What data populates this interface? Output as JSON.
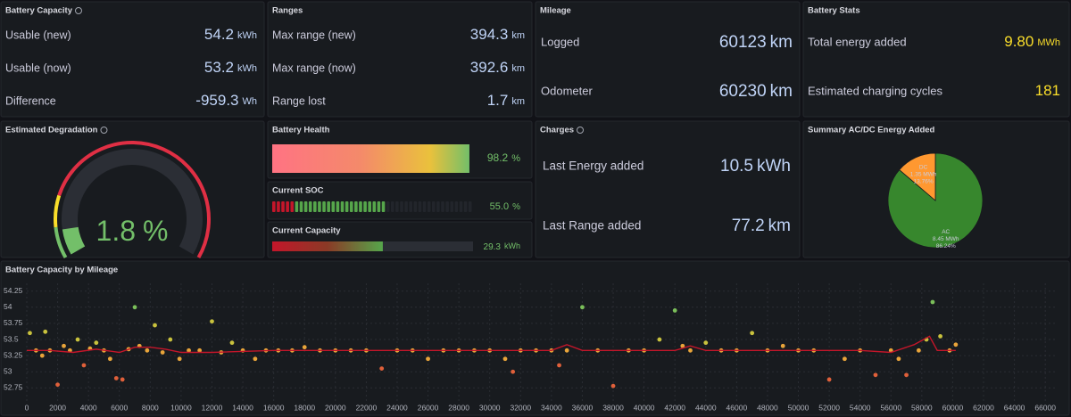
{
  "battery_capacity": {
    "title": "Battery Capacity",
    "rows": [
      {
        "label": "Usable (new)",
        "value": "54.2",
        "unit": "kWh"
      },
      {
        "label": "Usable (now)",
        "value": "53.2",
        "unit": "kWh"
      },
      {
        "label": "Difference",
        "value": "-959.3",
        "unit": "Wh"
      }
    ]
  },
  "ranges": {
    "title": "Ranges",
    "rows": [
      {
        "label": "Max range (new)",
        "value": "394.3",
        "unit": "km"
      },
      {
        "label": "Max range (now)",
        "value": "392.6",
        "unit": "km"
      },
      {
        "label": "Range lost",
        "value": "1.7",
        "unit": "km"
      }
    ]
  },
  "mileage": {
    "title": "Mileage",
    "rows": [
      {
        "label": "Logged",
        "value": "60123",
        "unit": "km"
      },
      {
        "label": "Odometer",
        "value": "60230",
        "unit": "km"
      }
    ]
  },
  "battery_stats": {
    "title": "Battery Stats",
    "rows": [
      {
        "label": "Total energy added",
        "value": "9.80",
        "unit": "MWh"
      },
      {
        "label": "Estimated charging cycles",
        "value": "181"
      }
    ]
  },
  "degradation": {
    "title": "Estimated Degradation",
    "value": 1.8,
    "unit": "%",
    "min": 0,
    "max": 20,
    "thresholds": [
      {
        "value": 0,
        "color": "#73bf69"
      },
      {
        "value": 2,
        "color": "#fade2a"
      },
      {
        "value": 4,
        "color": "#e02f44"
      }
    ]
  },
  "battery_health": {
    "title": "Battery Health",
    "value": 98.2,
    "unit": "%",
    "xlim": [
      0,
      100
    ]
  },
  "current_soc": {
    "title": "Current SOC",
    "value": 55,
    "value_label": "55.0",
    "unit": "%",
    "xlim": [
      0,
      100
    ]
  },
  "current_capacity": {
    "title": "Current Capacity",
    "value": 29.3,
    "unit": "kWh",
    "xlim": [
      0,
      53.2
    ]
  },
  "charges": {
    "title": "Charges",
    "rows": [
      {
        "label": "Last Energy added",
        "value": "10.5",
        "unit": "kWh"
      },
      {
        "label": "Last Range added",
        "value": "77.2",
        "unit": "km"
      }
    ]
  },
  "summary": {
    "title": "Summary AC/DC Energy Added",
    "slices": [
      {
        "name": "AC",
        "energy": "8.45 MWh",
        "value": 86.24,
        "value_label": "86.24%",
        "color": "#37872d"
      },
      {
        "name": "DC",
        "energy": "1.35 MWh",
        "value": 13.76,
        "value_label": "13.76%",
        "color": "#ff9830"
      }
    ]
  },
  "chart_data": {
    "type": "scatter",
    "title": "Battery Capacity by Mileage",
    "xlim": [
      0,
      66800
    ],
    "ylim": [
      52.52,
      54.37
    ],
    "xticks": [
      0,
      2000,
      4000,
      6000,
      8000,
      10000,
      12000,
      14000,
      16000,
      18000,
      20000,
      22000,
      24000,
      26000,
      28000,
      30000,
      32000,
      34000,
      36000,
      38000,
      40000,
      42000,
      44000,
      46000,
      48000,
      50000,
      52000,
      54000,
      56000,
      58000,
      60000,
      62000,
      64000,
      66000
    ],
    "yticks": [
      52.75,
      53,
      53.25,
      53.5,
      53.75,
      54,
      54.25
    ],
    "grid": true,
    "point_color_scale": [
      {
        "value": 52.52,
        "color": "#e0603a"
      },
      {
        "value": 53.2,
        "color": "#e8a43a"
      },
      {
        "value": 53.45,
        "color": "#c9c23d"
      },
      {
        "value": 53.9,
        "color": "#7bbf5a"
      }
    ],
    "x": [
      200,
      600,
      1000,
      1200,
      1500,
      2000,
      2400,
      2800,
      3300,
      3700,
      4100,
      4500,
      5000,
      5400,
      5800,
      6200,
      6600,
      7000,
      7300,
      7800,
      8300,
      8800,
      9300,
      9900,
      10500,
      11200,
      12000,
      12600,
      13300,
      14000,
      14800,
      15500,
      16300,
      17200,
      18000,
      19000,
      20000,
      21000,
      22000,
      23000,
      24000,
      25000,
      26000,
      27000,
      28000,
      29000,
      30000,
      31000,
      31500,
      32000,
      33000,
      34000,
      34500,
      35000,
      36000,
      37000,
      38000,
      39000,
      40000,
      41000,
      42000,
      42500,
      43000,
      44000,
      45000,
      46000,
      47000,
      48000,
      49000,
      50000,
      51000,
      52000,
      53000,
      54000,
      55000,
      56000,
      56500,
      57000,
      57800,
      58300,
      58700,
      59200,
      59800,
      60200
    ],
    "values": [
      53.6,
      53.33,
      53.25,
      53.62,
      53.33,
      52.8,
      53.4,
      53.33,
      53.5,
      53.1,
      53.36,
      53.45,
      53.33,
      53.2,
      52.9,
      52.88,
      53.35,
      54.0,
      53.4,
      53.33,
      53.72,
      53.3,
      53.5,
      53.2,
      53.33,
      53.33,
      53.78,
      53.3,
      53.45,
      53.33,
      53.2,
      53.33,
      53.33,
      53.33,
      53.38,
      53.33,
      53.33,
      53.33,
      53.33,
      53.05,
      53.33,
      53.33,
      53.2,
      53.33,
      53.33,
      53.33,
      53.33,
      53.2,
      53.0,
      53.33,
      53.33,
      53.33,
      53.1,
      53.33,
      54.0,
      53.33,
      52.78,
      53.33,
      53.33,
      53.5,
      53.95,
      53.4,
      53.33,
      53.45,
      53.33,
      53.33,
      53.6,
      53.33,
      53.4,
      53.33,
      53.33,
      52.88,
      53.2,
      53.33,
      52.95,
      53.33,
      53.2,
      52.95,
      53.33,
      53.5,
      54.08,
      53.55,
      53.33,
      53.42
    ],
    "line": {
      "color": "#c4162a",
      "x": [
        0,
        1500,
        3000,
        4500,
        6000,
        7000,
        8000,
        9000,
        10000,
        12000,
        16000,
        20000,
        30000,
        34000,
        35000,
        36000,
        38000,
        42000,
        43000,
        44000,
        46000,
        50000,
        54000,
        56000,
        57500,
        58500,
        59000,
        60200
      ],
      "values": [
        53.33,
        53.33,
        53.3,
        53.35,
        53.3,
        53.38,
        53.38,
        53.35,
        53.3,
        53.3,
        53.33,
        53.33,
        53.33,
        53.33,
        53.42,
        53.33,
        53.33,
        53.33,
        53.4,
        53.33,
        53.33,
        53.33,
        53.33,
        53.3,
        53.42,
        53.55,
        53.33,
        53.33
      ]
    }
  }
}
